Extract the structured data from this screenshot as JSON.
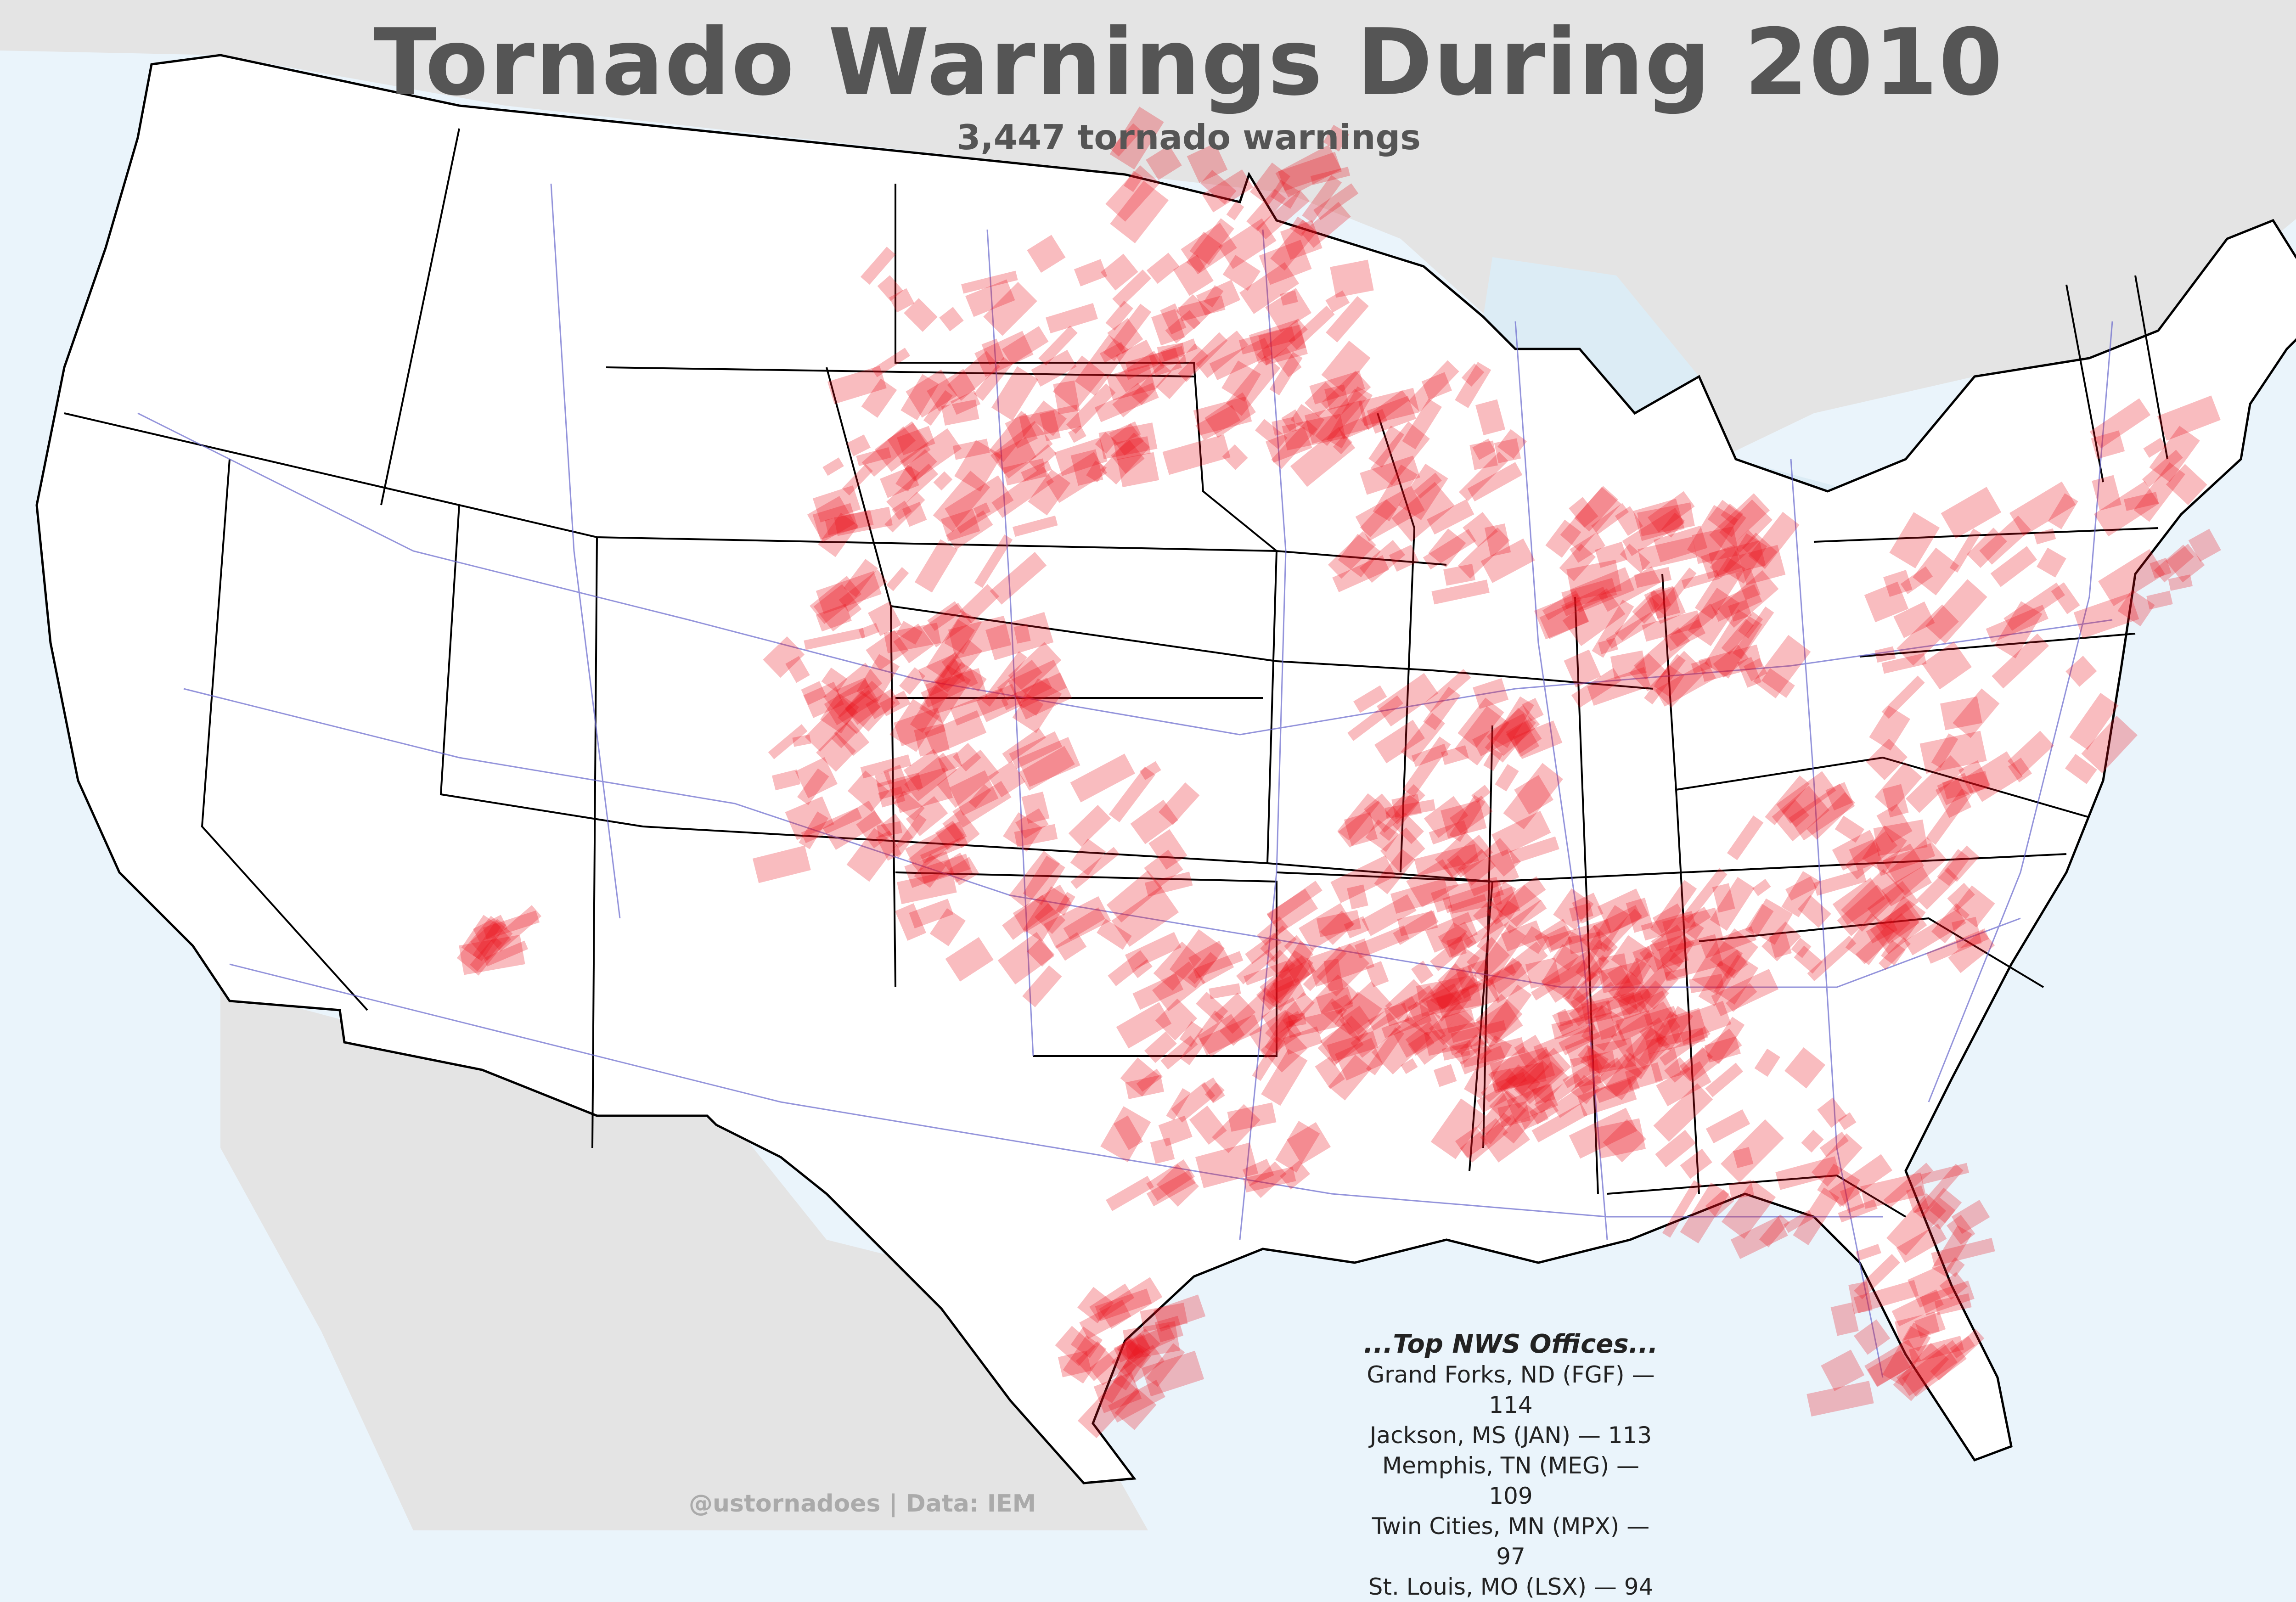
{
  "title": "Tornado Warnings During 2010",
  "subtitle": "3,447 tornado warnings",
  "top_offices": {
    "heading": "...Top NWS Offices...",
    "entries": [
      "Grand Forks, ND (FGF) — 114",
      "Jackson, MS (JAN) — 113",
      "Memphis, TN (MEG) — 109",
      "Twin Cities, MN (MPX) — 97",
      "St. Louis, MO (LSX) — 94"
    ]
  },
  "credit": "@ustornadoes | Data: IEM",
  "colors": {
    "ocean": "#eaf4fb",
    "land_outside": "#e4e4e4",
    "land_us": "#ffffff",
    "warning": "#e8101a",
    "border": "#000000",
    "highway": "#6666cc",
    "title": "#555555"
  }
}
